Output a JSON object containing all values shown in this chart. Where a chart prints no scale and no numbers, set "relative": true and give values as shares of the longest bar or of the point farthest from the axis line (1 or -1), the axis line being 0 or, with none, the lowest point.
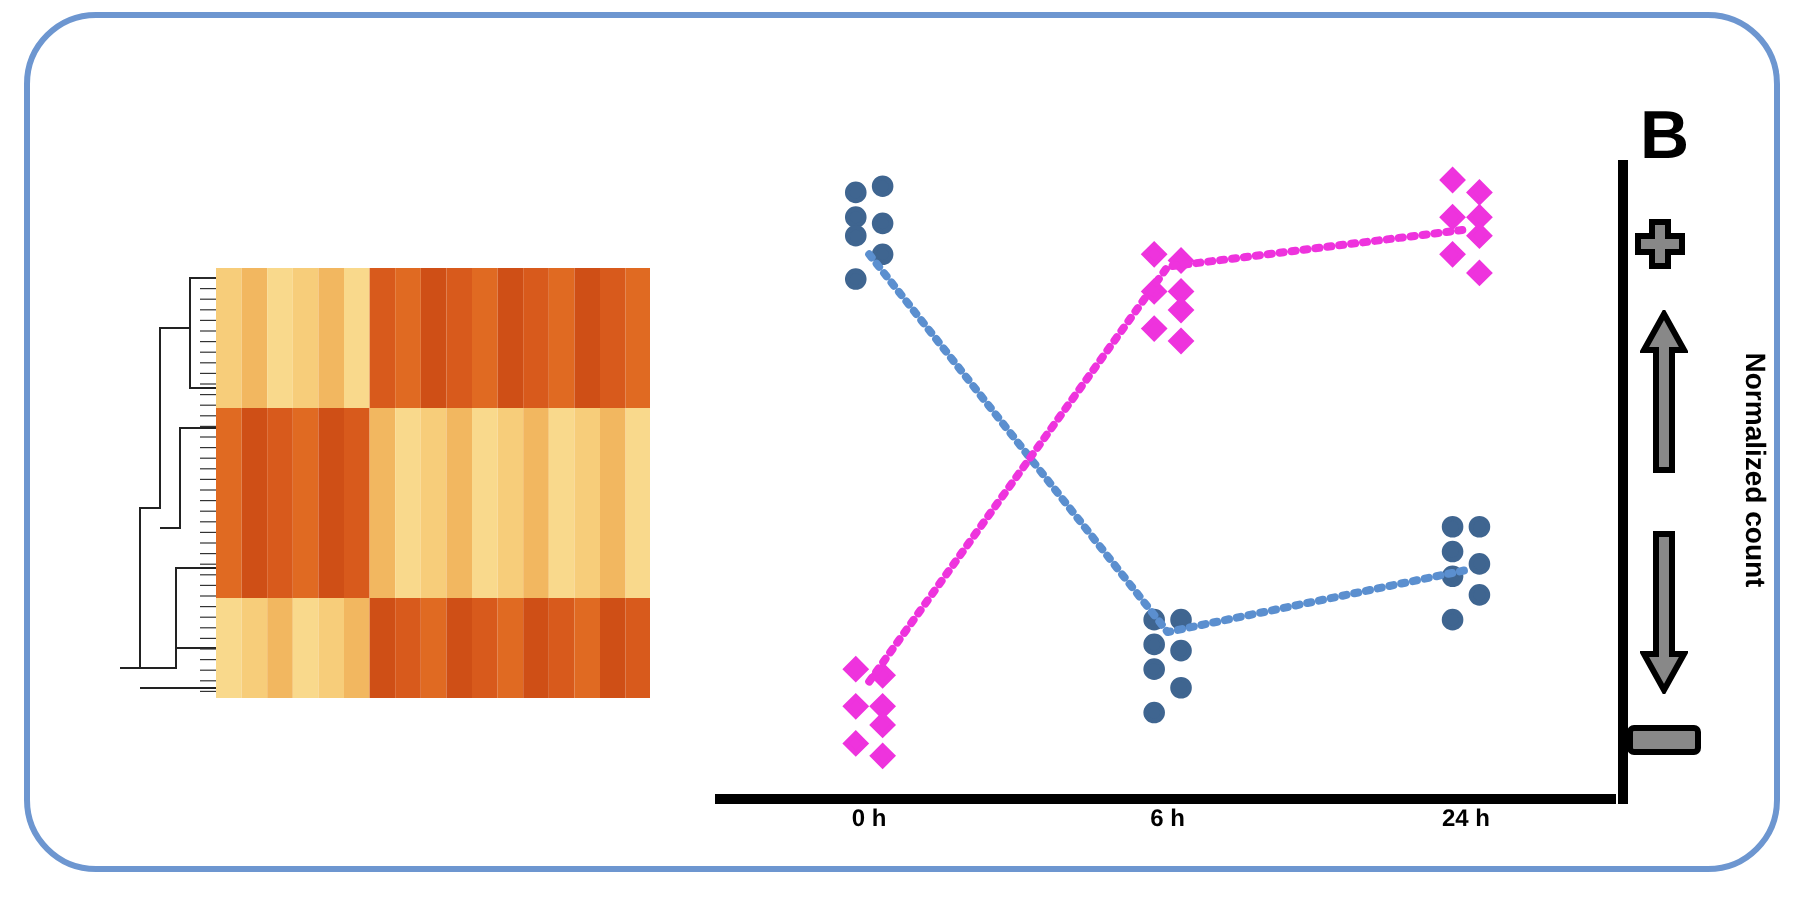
{
  "chart_data": {
    "type": "scatter",
    "title": "B",
    "ylabel": "Normalized count",
    "relative": true,
    "legend": false,
    "grid": false,
    "categories": [
      "0 h",
      "6 h",
      "24 h"
    ],
    "series": [
      {
        "marker": "circle",
        "color": "#3f6590",
        "x": [
          "0 h",
          "0 h",
          "0 h",
          "0 h",
          "6 h",
          "6 h",
          "6 h",
          "6 h",
          "24 h",
          "24 h",
          "24 h",
          "24 h"
        ],
        "values": [
          0.98,
          0.94,
          0.91,
          0.84,
          0.29,
          0.25,
          0.21,
          0.14,
          0.44,
          0.4,
          0.36,
          0.29
        ]
      },
      {
        "marker": "circle",
        "color": "#3f6590",
        "x": [
          "0 h",
          "0 h",
          "0 h",
          "6 h",
          "6 h",
          "6 h",
          "24 h",
          "24 h",
          "24 h"
        ],
        "values": [
          0.99,
          0.93,
          0.88,
          0.29,
          0.24,
          0.18,
          0.44,
          0.38,
          0.33
        ]
      },
      {
        "marker": "diamond",
        "color": "#ee33dd",
        "x": [
          "0 h",
          "0 h",
          "0 h",
          "6 h",
          "6 h",
          "6 h",
          "24 h",
          "24 h",
          "24 h"
        ],
        "values": [
          0.21,
          0.15,
          0.09,
          0.88,
          0.82,
          0.76,
          1.0,
          0.94,
          0.88
        ]
      },
      {
        "marker": "diamond",
        "color": "#ee33dd",
        "x": [
          "0 h",
          "0 h",
          "0 h",
          "0 h",
          "6 h",
          "6 h",
          "6 h",
          "6 h",
          "24 h",
          "24 h",
          "24 h",
          "24 h"
        ],
        "values": [
          0.2,
          0.15,
          0.12,
          0.07,
          0.87,
          0.82,
          0.79,
          0.74,
          0.98,
          0.94,
          0.91,
          0.85
        ]
      },
      {
        "type": "line",
        "marker": "none",
        "line_style": "dotted",
        "color": "#5b8fcf",
        "values": [
          0.88,
          0.27,
          0.37
        ]
      },
      {
        "type": "line",
        "marker": "none",
        "line_style": "dotted",
        "color": "#ee33dd",
        "values": [
          0.19,
          0.86,
          0.92
        ]
      }
    ]
  }
}
